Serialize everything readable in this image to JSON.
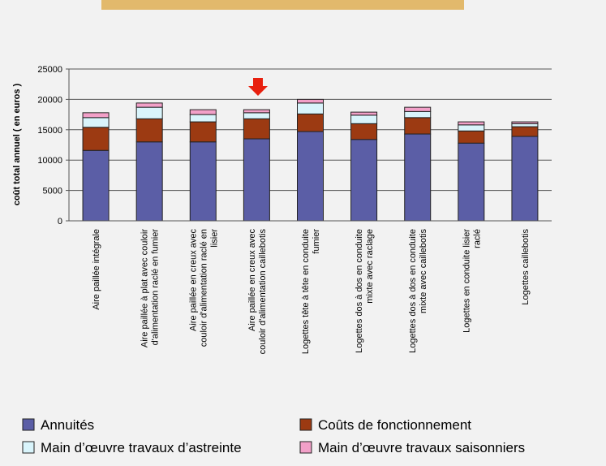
{
  "chart_data": {
    "type": "stacked_bar",
    "ylabel": "coût total annuel ( en euros )",
    "categories": [
      "Aire paillée intégrale",
      "Aire paillée à plat avec couloir\nd'alimentation raclé en fumier",
      "Aire paillée en creux avec\ncouloir d'alimentation raclé en\nlisier",
      "Aire paillée en creux avec\ncouloir d'alimentation caillebotis",
      "Logettes tête à tête en conduite\nfumier",
      "Logettes dos à dos en conduite\nmixte avec raclage",
      "Logettes dos à dos en conduite\nmixte avec caillebotis",
      "Logettes en conduite lisier\nraclé",
      "Logettes caillebotis"
    ],
    "series": [
      {
        "name": "Annuités",
        "color": "#5b5ea6",
        "values": [
          11600,
          13000,
          13000,
          13500,
          14700,
          13400,
          14300,
          12800,
          13900
        ]
      },
      {
        "name": "Coûts de fonctionnement",
        "color": "#9c3a12",
        "values": [
          3800,
          3800,
          3300,
          3300,
          2900,
          2600,
          2700,
          2000,
          1600
        ]
      },
      {
        "name": "Main d’œuvre travaux d’astreinte",
        "color": "#d9f4fb",
        "values": [
          1600,
          1900,
          1200,
          1000,
          1800,
          1400,
          1000,
          1000,
          500
        ]
      },
      {
        "name": "Main d’œuvre travaux saisonniers",
        "color": "#f2a0c8",
        "values": [
          800,
          700,
          800,
          500,
          600,
          500,
          700,
          500,
          300
        ]
      }
    ],
    "ylim": [
      0,
      25000
    ],
    "yticks": [
      0,
      5000,
      10000,
      15000,
      20000,
      25000
    ],
    "grid": true
  }
}
